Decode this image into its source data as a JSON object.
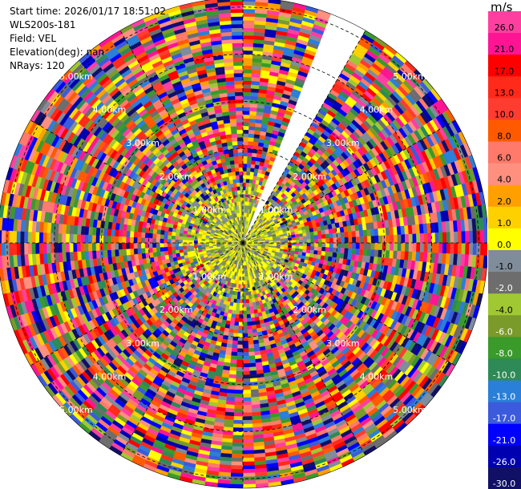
{
  "info": {
    "start_time": "Start time: 2026/01/17 18:51:02",
    "instrument": "WLS200s-181",
    "field": "Field: VEL",
    "elevation": "Elevation(deg): nan",
    "nrays": "NRays: 120"
  },
  "chart_data": {
    "type": "heatmap",
    "subtype": "polar-ppi",
    "field": "VEL",
    "units": "m/s",
    "nrays": 120,
    "range_rings_km": [
      1,
      2,
      3,
      4,
      5
    ],
    "range_ring_labels": [
      "1.00km",
      "2.00km",
      "3.00km",
      "4.00km",
      "5.00km"
    ],
    "max_range_km": 5.2,
    "gap_azimuth_deg": [
      20,
      30
    ],
    "colorbar": {
      "title": "m/s",
      "tick_labels": [
        "26.0",
        "21.0",
        "17.0",
        "13.0",
        "10.0",
        "8.0",
        "6.0",
        "4.0",
        "2.0",
        "1.0",
        "0.0",
        "-1.0",
        "-2.0",
        "-4.0",
        "-6.0",
        "-8.0",
        "-10.0",
        "-13.0",
        "-17.0",
        "-21.0",
        "-26.0",
        "-30.0"
      ],
      "colors": [
        "#ff3fa0",
        "#ff1494",
        "#ff0000",
        "#ff2a1a",
        "#ff3c30",
        "#ff5a00",
        "#ff7a6a",
        "#ff9080",
        "#ffa000",
        "#ffd000",
        "#ffff00",
        "#7f8c99",
        "#6d6d6d",
        "#a0c832",
        "#7a9a2a",
        "#3a9a2a",
        "#2e8a56",
        "#2a7fd8",
        "#3b5bdc",
        "#0000ff",
        "#0000b0",
        "#101066"
      ]
    }
  }
}
